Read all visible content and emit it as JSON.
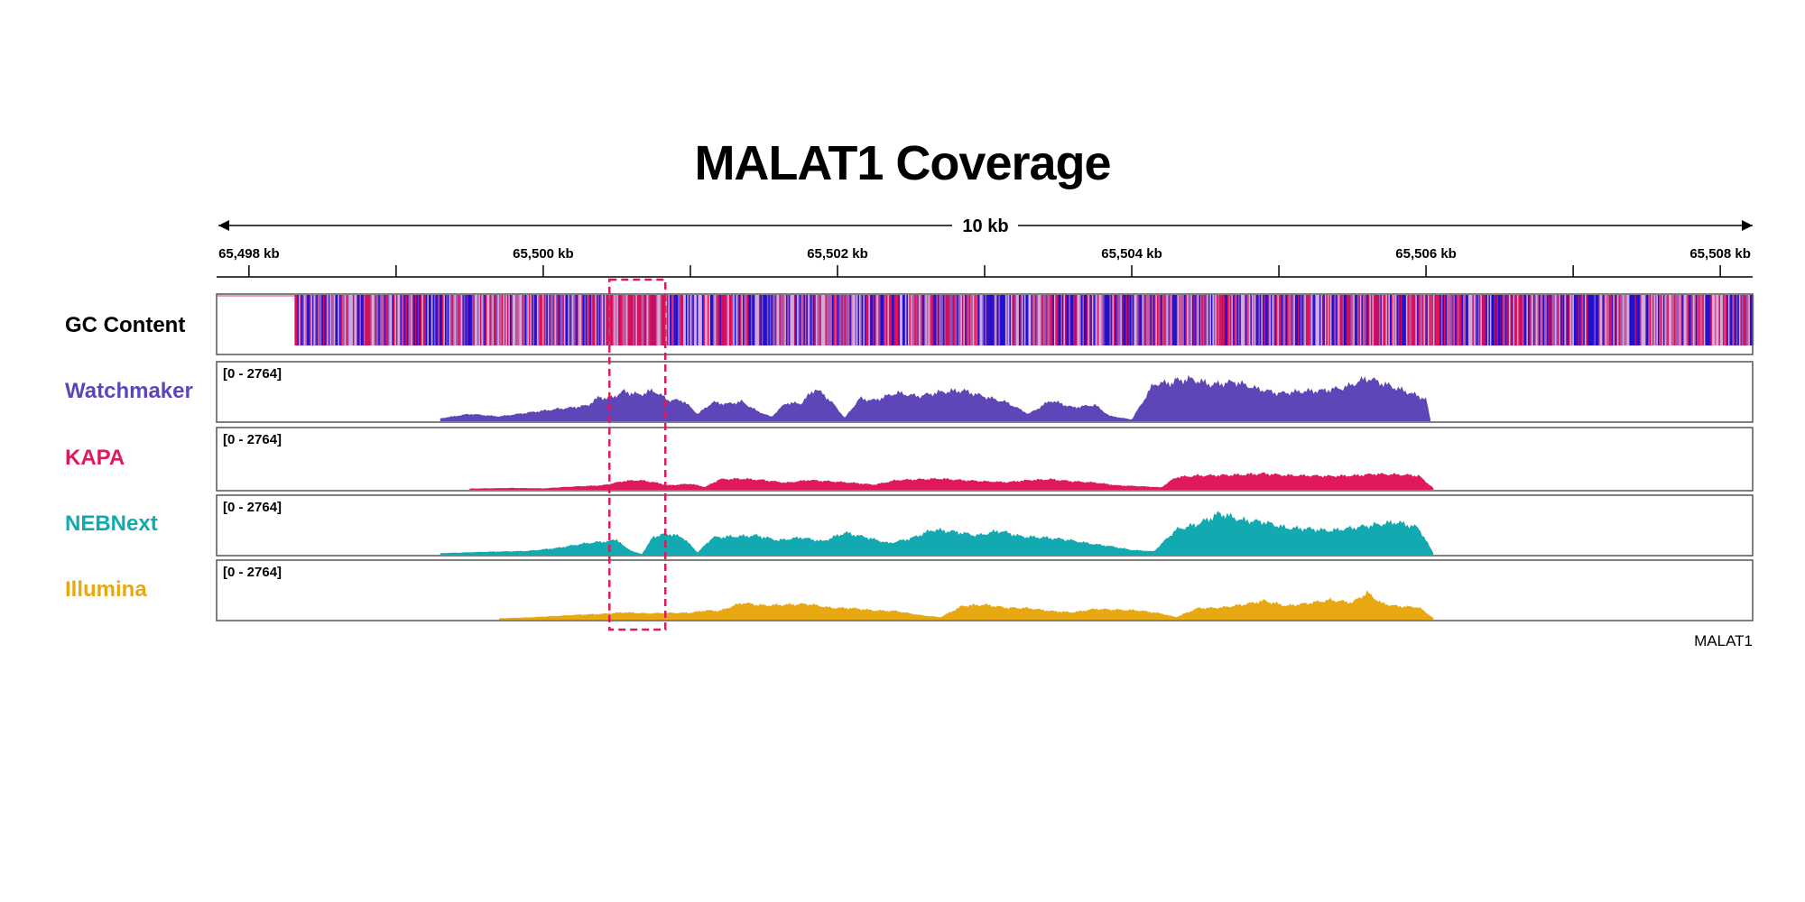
{
  "chart_data": {
    "type": "area",
    "title": "MALAT1 Coverage",
    "span_label": "10 kb",
    "x_unit": "kb",
    "xlim": [
      65497.78,
      65508.22
    ],
    "major_ticks": [
      65498,
      65500,
      65502,
      65504,
      65506,
      65508
    ],
    "minor_ticks": [
      65499,
      65501,
      65503,
      65505,
      65507
    ],
    "tick_labels": [
      "65,498 kb",
      "65,500 kb",
      "65,502 kb",
      "65,504 kb",
      "65,506 kb",
      "65,508 kb"
    ],
    "highlight_region": [
      65500.45,
      65500.83
    ],
    "gene_label": "MALAT1",
    "gc_track": {
      "name": "GC Content",
      "start": 65498.31,
      "end": 65508.22,
      "low_color": "#1010d8",
      "high_color": "#f0104a"
    },
    "series": [
      {
        "name": "Watchmaker",
        "color": "#5e45b8",
        "range_label": "[0 - 2764]",
        "ymax": 2764,
        "x": [
          65499.3,
          65499.5,
          65499.7,
          65499.9,
          65500.1,
          65500.2,
          65500.3,
          65500.38,
          65500.45,
          65500.55,
          65500.65,
          65500.75,
          65500.85,
          65500.95,
          65501.05,
          65501.15,
          65501.25,
          65501.35,
          65501.45,
          65501.55,
          65501.65,
          65501.75,
          65501.85,
          65501.95,
          65502.05,
          65502.15,
          65502.25,
          65502.4,
          65502.55,
          65502.7,
          65502.85,
          65503.0,
          65503.15,
          65503.3,
          65503.45,
          65503.6,
          65503.75,
          65503.85,
          65504.0,
          65504.15,
          65504.27,
          65504.3,
          65504.4,
          65504.55,
          65504.7,
          65504.85,
          65505.0,
          65505.15,
          65505.3,
          65505.45,
          65505.6,
          65505.75,
          65505.9,
          65506.0,
          65506.03
        ],
        "values": [
          150,
          380,
          250,
          450,
          640,
          720,
          820,
          1250,
          1180,
          1550,
          1380,
          1600,
          1100,
          1080,
          380,
          980,
          900,
          1020,
          550,
          230,
          950,
          920,
          1700,
          1100,
          180,
          1180,
          1080,
          1480,
          1300,
          1520,
          1600,
          1280,
          980,
          380,
          1080,
          720,
          850,
          280,
          90,
          1950,
          2000,
          2100,
          2200,
          1900,
          2050,
          1700,
          1450,
          1550,
          1600,
          1750,
          2250,
          1850,
          1450,
          1150,
          90
        ]
      },
      {
        "name": "KAPA",
        "color": "#e0195e",
        "range_label": "[0 - 2764]",
        "ymax": 2764,
        "x": [
          65499.5,
          65499.8,
          65500.0,
          65500.2,
          65500.4,
          65500.55,
          65500.65,
          65500.75,
          65500.85,
          65501.0,
          65501.1,
          65501.2,
          65501.35,
          65501.5,
          65501.65,
          65501.8,
          65501.95,
          65502.1,
          65502.25,
          65502.4,
          65502.55,
          65502.7,
          65502.85,
          65503.0,
          65503.15,
          65503.3,
          65503.45,
          65503.6,
          65503.75,
          65503.9,
          65504.05,
          65504.2,
          65504.3,
          65504.45,
          65504.6,
          65504.75,
          65504.9,
          65505.05,
          65505.2,
          65505.35,
          65505.5,
          65505.65,
          65505.8,
          65505.95,
          65506.05
        ],
        "values": [
          60,
          90,
          70,
          160,
          220,
          430,
          480,
          380,
          220,
          300,
          140,
          520,
          550,
          480,
          350,
          480,
          420,
          350,
          250,
          480,
          520,
          550,
          480,
          420,
          380,
          480,
          520,
          420,
          360,
          220,
          180,
          120,
          620,
          700,
          720,
          750,
          800,
          720,
          700,
          680,
          700,
          780,
          760,
          700,
          90
        ]
      },
      {
        "name": "NEBNext",
        "color": "#12aab0",
        "range_label": "[0 - 2764]",
        "ymax": 2764,
        "x": [
          65499.3,
          65499.6,
          65499.9,
          65500.1,
          65500.25,
          65500.35,
          65500.45,
          65500.5,
          65500.55,
          65500.62,
          65500.67,
          65500.75,
          65500.85,
          65500.95,
          65501.05,
          65501.15,
          65501.3,
          65501.45,
          65501.6,
          65501.75,
          65501.9,
          65502.05,
          65502.2,
          65502.35,
          65502.5,
          65502.65,
          65502.8,
          65502.95,
          65503.1,
          65503.25,
          65503.4,
          65503.55,
          65503.7,
          65503.85,
          65504.0,
          65504.15,
          65504.3,
          65504.45,
          65504.6,
          65504.75,
          65504.9,
          65505.05,
          65505.2,
          65505.35,
          65505.5,
          65505.65,
          65505.8,
          65505.95,
          65506.05
        ],
        "values": [
          80,
          150,
          200,
          360,
          550,
          650,
          700,
          820,
          420,
          140,
          40,
          950,
          1100,
          900,
          120,
          900,
          950,
          1000,
          750,
          900,
          700,
          1150,
          900,
          600,
          850,
          1300,
          1200,
          1000,
          1250,
          950,
          900,
          800,
          600,
          450,
          250,
          180,
          1300,
          1600,
          2150,
          1800,
          1700,
          1400,
          1350,
          1250,
          1400,
          1550,
          1700,
          1400,
          90
        ]
      },
      {
        "name": "Illumina",
        "color": "#e8a812",
        "range_label": "[0 - 2764]",
        "ymax": 2764,
        "x": [
          65499.7,
          65499.9,
          65500.1,
          65500.25,
          65500.4,
          65500.55,
          65500.7,
          65500.85,
          65501.0,
          65501.1,
          65501.2,
          65501.35,
          65501.5,
          65501.65,
          65501.8,
          65501.95,
          65502.1,
          65502.25,
          65502.4,
          65502.55,
          65502.7,
          65502.85,
          65503.0,
          65503.15,
          65503.3,
          65503.45,
          65503.6,
          65503.75,
          65503.9,
          65504.05,
          65504.2,
          65504.3,
          65504.45,
          65504.6,
          65504.75,
          65504.9,
          65505.05,
          65505.2,
          65505.35,
          65505.5,
          65505.6,
          65505.7,
          65505.8,
          65505.95,
          65506.05
        ],
        "values": [
          70,
          120,
          200,
          260,
          300,
          380,
          330,
          350,
          360,
          480,
          460,
          880,
          740,
          780,
          820,
          620,
          600,
          480,
          450,
          250,
          130,
          720,
          780,
          620,
          600,
          450,
          380,
          560,
          520,
          480,
          320,
          130,
          600,
          620,
          780,
          980,
          720,
          860,
          1020,
          900,
          1400,
          850,
          700,
          650,
          90
        ]
      }
    ]
  }
}
